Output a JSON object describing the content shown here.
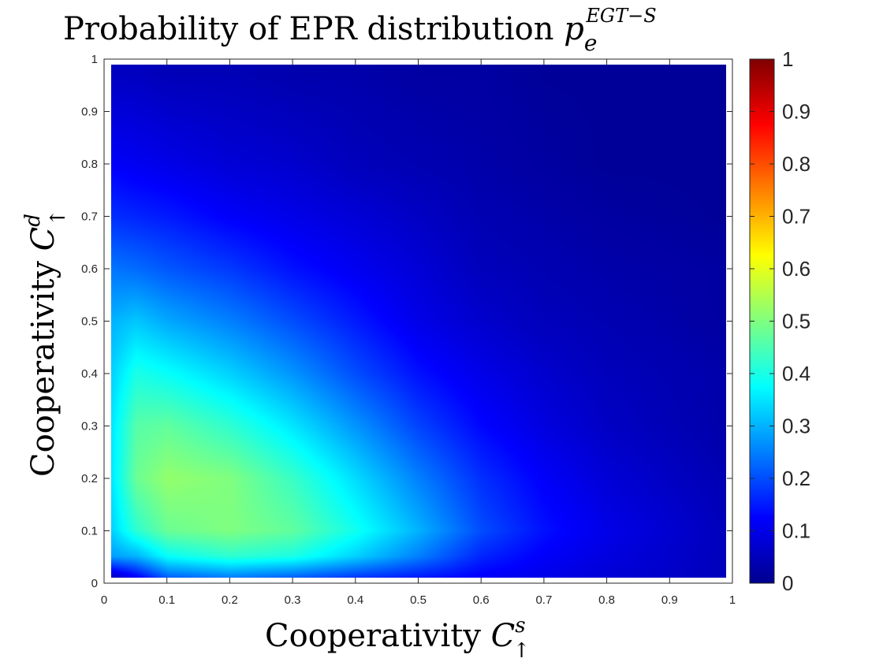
{
  "chart_data": {
    "type": "heatmap",
    "title_main": "Probability of EPR distribution ",
    "title_symbol": "p",
    "title_subscript": "e",
    "title_superscript": "EGT−S",
    "xlabel_main": "Cooperativity ",
    "xlabel_symbol": "C",
    "xlabel_superscript": "s",
    "xlabel_subscript": "↑",
    "ylabel_main": "Cooperativity ",
    "ylabel_symbol": "C",
    "ylabel_superscript": "d",
    "ylabel_subscript": "↑",
    "xlim": [
      0,
      1
    ],
    "ylim": [
      0,
      1
    ],
    "x_ticks": [
      "0",
      "0.1",
      "0.2",
      "0.3",
      "0.4",
      "0.5",
      "0.6",
      "0.7",
      "0.8",
      "0.9",
      "1"
    ],
    "y_ticks": [
      "0",
      "0.1",
      "0.2",
      "0.3",
      "0.4",
      "0.5",
      "0.6",
      "0.7",
      "0.8",
      "0.9",
      "1"
    ],
    "colorbar": {
      "colormap": "jet",
      "range": [
        0,
        1
      ],
      "ticks": [
        "0",
        "0.1",
        "0.2",
        "0.3",
        "0.4",
        "0.5",
        "0.6",
        "0.7",
        "0.8",
        "0.9",
        "1"
      ]
    },
    "peak": {
      "x": 0.12,
      "y": 0.2,
      "value": 0.52
    },
    "x": [
      0.01,
      0.05,
      0.1,
      0.2,
      0.3,
      0.4,
      0.5,
      0.6,
      0.7,
      0.8,
      0.99
    ],
    "y": [
      0.01,
      0.05,
      0.1,
      0.2,
      0.3,
      0.4,
      0.5,
      0.6,
      0.7,
      0.8,
      0.99
    ],
    "z": [
      [
        0.05,
        0.12,
        0.22,
        0.25,
        0.22,
        0.18,
        0.15,
        0.12,
        0.1,
        0.08,
        0.05
      ],
      [
        0.28,
        0.3,
        0.38,
        0.42,
        0.4,
        0.33,
        0.25,
        0.16,
        0.12,
        0.09,
        0.05
      ],
      [
        0.33,
        0.42,
        0.48,
        0.5,
        0.47,
        0.39,
        0.3,
        0.2,
        0.14,
        0.1,
        0.05
      ],
      [
        0.35,
        0.48,
        0.52,
        0.5,
        0.43,
        0.34,
        0.25,
        0.17,
        0.12,
        0.08,
        0.04
      ],
      [
        0.35,
        0.46,
        0.47,
        0.42,
        0.35,
        0.27,
        0.19,
        0.13,
        0.09,
        0.06,
        0.03
      ],
      [
        0.33,
        0.4,
        0.38,
        0.33,
        0.27,
        0.2,
        0.14,
        0.1,
        0.07,
        0.05,
        0.03
      ],
      [
        0.3,
        0.32,
        0.29,
        0.25,
        0.2,
        0.15,
        0.1,
        0.07,
        0.05,
        0.04,
        0.02
      ],
      [
        0.24,
        0.23,
        0.21,
        0.18,
        0.14,
        0.11,
        0.08,
        0.05,
        0.04,
        0.03,
        0.02
      ],
      [
        0.17,
        0.16,
        0.15,
        0.12,
        0.1,
        0.08,
        0.06,
        0.04,
        0.03,
        0.02,
        0.01
      ],
      [
        0.12,
        0.11,
        0.1,
        0.08,
        0.07,
        0.05,
        0.04,
        0.03,
        0.02,
        0.01,
        0.01
      ],
      [
        0.05,
        0.05,
        0.04,
        0.04,
        0.03,
        0.03,
        0.02,
        0.02,
        0.01,
        0.01,
        0.01
      ]
    ]
  }
}
